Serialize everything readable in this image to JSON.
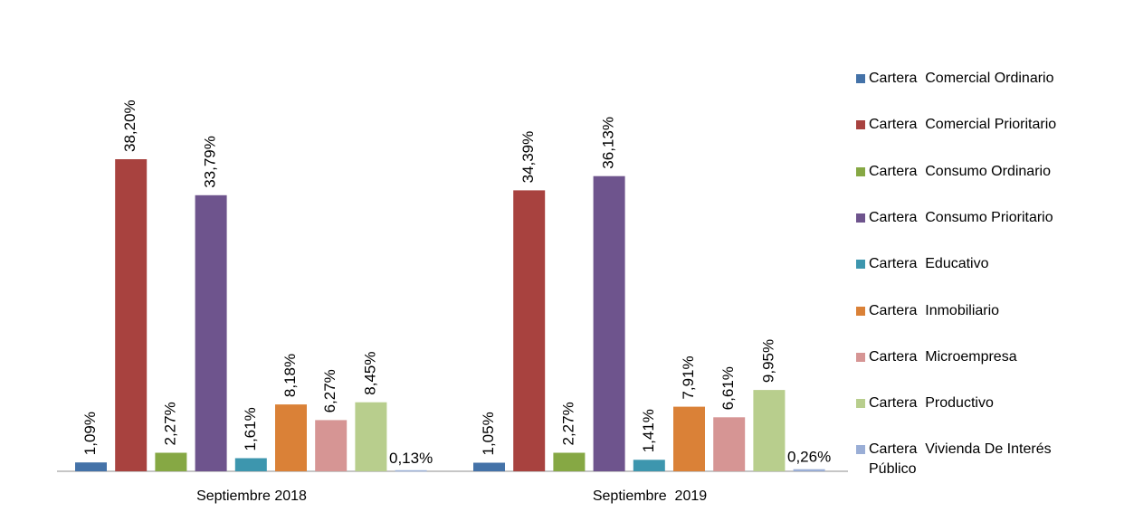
{
  "chart_data": {
    "type": "bar",
    "categories": [
      "Septiembre 2018",
      "Septiembre  2019"
    ],
    "series": [
      {
        "name": "Cartera  Comercial Ordinario",
        "color": "#4472A8",
        "values": [
          1.09,
          1.05
        ],
        "labels": [
          "1,09%",
          "1,05%"
        ]
      },
      {
        "name": "Cartera  Comercial Prioritario",
        "color": "#A8423F",
        "values": [
          38.2,
          34.39
        ],
        "labels": [
          "38,20%",
          "34,39%"
        ]
      },
      {
        "name": "Cartera  Consumo Ordinario",
        "color": "#86A844",
        "values": [
          2.27,
          2.27
        ],
        "labels": [
          "2,27%",
          "2,27%"
        ]
      },
      {
        "name": "Cartera  Consumo Prioritario",
        "color": "#6E548D",
        "values": [
          33.79,
          36.13
        ],
        "labels": [
          "33,79%",
          "36,13%"
        ]
      },
      {
        "name": "Cartera  Educativo",
        "color": "#3D96AE",
        "values": [
          1.61,
          1.41
        ],
        "labels": [
          "1,61%",
          "1,41%"
        ]
      },
      {
        "name": "Cartera  Inmobiliario",
        "color": "#DA8137",
        "values": [
          8.18,
          7.91
        ],
        "labels": [
          "8,18%",
          "7,91%"
        ]
      },
      {
        "name": "Cartera  Microempresa",
        "color": "#D69594",
        "values": [
          6.27,
          6.61
        ],
        "labels": [
          "6,27%",
          "6,61%"
        ]
      },
      {
        "name": "Cartera  Productivo",
        "color": "#B8CE8D",
        "values": [
          8.45,
          9.95
        ],
        "labels": [
          "8,45%",
          "9,95%"
        ]
      },
      {
        "name": "Cartera  Vivienda De Interés\nPúblico",
        "color": "#9AAED6",
        "values": [
          0.13,
          0.26
        ],
        "labels": [
          "0,13%",
          "0,26%"
        ]
      }
    ],
    "ylim": [
      0,
      38.2
    ],
    "grid": false,
    "legend": "right"
  }
}
